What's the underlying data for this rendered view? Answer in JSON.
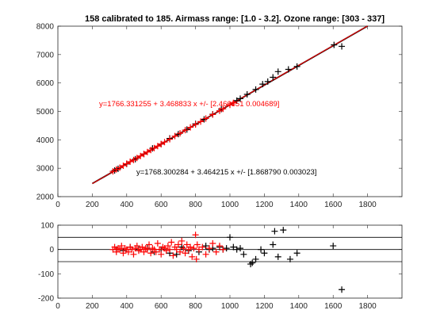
{
  "colors": {
    "black": "#000000",
    "red": "#ff0000",
    "axis": "#262626"
  },
  "chart_data": [
    {
      "type": "scatter",
      "title": "158 calibrated to 185. Airmass range: [1.0 - 3.2]. Ozone range: [303 - 337]",
      "xlabel": "",
      "ylabel": "",
      "xlim": [
        0,
        2000
      ],
      "ylim": [
        2000,
        8000
      ],
      "x_ticks": [
        "0",
        "200",
        "400",
        "600",
        "800",
        "1000",
        "1200",
        "1400",
        "1600",
        "1800"
      ],
      "y_ticks": [
        "2000",
        "3000",
        "4000",
        "5000",
        "6000",
        "7000",
        "8000"
      ],
      "grid": false,
      "annotations": {
        "red_fit": "y=1766.331255 + 3.468833 x +/- [2.466351 0.004689]",
        "black_fit": "y=1768.300284 + 3.464215 x +/- [1.868790 0.003023]"
      },
      "fit_lines": [
        {
          "color": "#000000",
          "intercept": 1768.300284,
          "slope": 3.464215,
          "x": [
            200,
            1800
          ]
        },
        {
          "color": "#ff0000",
          "intercept": 1766.331255,
          "slope": 3.468833,
          "x": [
            200,
            1800
          ]
        }
      ],
      "series": [
        {
          "marker": "+",
          "color": "#000000",
          "points": [
            [
              1605,
              7340
            ],
            [
              1650,
              7290
            ],
            [
              1390,
              6580
            ],
            [
              1340,
              6480
            ],
            [
              1280,
              6400
            ],
            [
              1250,
              6200
            ],
            [
              1220,
              6050
            ],
            [
              1190,
              5960
            ],
            [
              1150,
              5770
            ],
            [
              1100,
              5600
            ],
            [
              1060,
              5450
            ],
            [
              1040,
              5380
            ],
            [
              950,
              5080
            ],
            [
              900,
              4900
            ],
            [
              850,
              4720
            ],
            [
              800,
              4560
            ],
            [
              750,
              4360
            ],
            [
              700,
              4200
            ],
            [
              650,
              4050
            ],
            [
              600,
              3850
            ],
            [
              550,
              3700
            ],
            [
              500,
              3500
            ],
            [
              450,
              3320
            ],
            [
              400,
              3150
            ],
            [
              350,
              2980
            ],
            [
              330,
              2920
            ]
          ]
        },
        {
          "marker": "+",
          "color": "#ff0000",
          "points": [
            [
              320,
              2890
            ],
            [
              340,
              2960
            ],
            [
              360,
              3020
            ],
            [
              380,
              3090
            ],
            [
              400,
              3160
            ],
            [
              420,
              3230
            ],
            [
              440,
              3290
            ],
            [
              460,
              3360
            ],
            [
              480,
              3430
            ],
            [
              500,
              3500
            ],
            [
              520,
              3570
            ],
            [
              540,
              3640
            ],
            [
              560,
              3710
            ],
            [
              580,
              3780
            ],
            [
              600,
              3850
            ],
            [
              620,
              3920
            ],
            [
              650,
              4020
            ],
            [
              680,
              4130
            ],
            [
              710,
              4230
            ],
            [
              740,
              4340
            ],
            [
              770,
              4440
            ],
            [
              800,
              4540
            ],
            [
              830,
              4640
            ],
            [
              860,
              4750
            ],
            [
              900,
              4890
            ],
            [
              940,
              5020
            ],
            [
              960,
              5090
            ],
            [
              1000,
              5230
            ],
            [
              1020,
              5300
            ]
          ]
        }
      ]
    },
    {
      "type": "scatter",
      "title": "",
      "xlabel": "",
      "ylabel": "",
      "xlim": [
        0,
        2000
      ],
      "ylim": [
        -200,
        100
      ],
      "x_ticks": [
        "0",
        "200",
        "400",
        "600",
        "800",
        "1000",
        "1200",
        "1400",
        "1600",
        "1800"
      ],
      "y_ticks": [
        "-200",
        "-100",
        "0",
        "100"
      ],
      "grid": false,
      "reference_lines": [
        50,
        0,
        -50
      ],
      "series": [
        {
          "marker": "+",
          "color": "#000000",
          "points": [
            [
              1600,
              15
            ],
            [
              1650,
              -165
            ],
            [
              1310,
              80
            ],
            [
              1260,
              75
            ],
            [
              1250,
              20
            ],
            [
              1390,
              -15
            ],
            [
              1350,
              -40
            ],
            [
              1280,
              -30
            ],
            [
              1150,
              -40
            ],
            [
              1130,
              -55
            ],
            [
              1120,
              -60
            ],
            [
              1180,
              0
            ],
            [
              1200,
              -15
            ],
            [
              1080,
              -20
            ],
            [
              1060,
              5
            ],
            [
              1040,
              0
            ],
            [
              1020,
              10
            ],
            [
              1000,
              50
            ],
            [
              980,
              5
            ],
            [
              960,
              0
            ],
            [
              940,
              10
            ],
            [
              900,
              5
            ],
            [
              880,
              0
            ],
            [
              860,
              15
            ],
            [
              820,
              -10
            ],
            [
              760,
              -5
            ],
            [
              720,
              10
            ],
            [
              690,
              -20
            ],
            [
              650,
              -15
            ],
            [
              600,
              0
            ],
            [
              560,
              -10
            ],
            [
              520,
              5
            ],
            [
              470,
              0
            ],
            [
              420,
              10
            ],
            [
              380,
              -5
            ],
            [
              340,
              0
            ]
          ]
        },
        {
          "marker": "+",
          "color": "#ff0000",
          "points": [
            [
              320,
              0
            ],
            [
              330,
              10
            ],
            [
              340,
              -10
            ],
            [
              350,
              5
            ],
            [
              360,
              0
            ],
            [
              370,
              15
            ],
            [
              380,
              -15
            ],
            [
              390,
              5
            ],
            [
              400,
              0
            ],
            [
              410,
              -10
            ],
            [
              420,
              10
            ],
            [
              430,
              0
            ],
            [
              440,
              -20
            ],
            [
              450,
              5
            ],
            [
              460,
              15
            ],
            [
              470,
              -5
            ],
            [
              480,
              0
            ],
            [
              490,
              10
            ],
            [
              500,
              -10
            ],
            [
              510,
              5
            ],
            [
              520,
              0
            ],
            [
              530,
              20
            ],
            [
              540,
              -15
            ],
            [
              550,
              5
            ],
            [
              560,
              0
            ],
            [
              570,
              -10
            ],
            [
              580,
              25
            ],
            [
              590,
              0
            ],
            [
              600,
              -20
            ],
            [
              610,
              10
            ],
            [
              620,
              5
            ],
            [
              630,
              -5
            ],
            [
              640,
              15
            ],
            [
              650,
              0
            ],
            [
              660,
              30
            ],
            [
              670,
              -25
            ],
            [
              680,
              10
            ],
            [
              690,
              0
            ],
            [
              700,
              20
            ],
            [
              710,
              -10
            ],
            [
              720,
              35
            ],
            [
              730,
              5
            ],
            [
              740,
              -15
            ],
            [
              750,
              20
            ],
            [
              760,
              0
            ],
            [
              770,
              10
            ],
            [
              780,
              -30
            ],
            [
              790,
              5
            ],
            [
              800,
              60
            ],
            [
              805,
              -40
            ],
            [
              810,
              20
            ],
            [
              820,
              0
            ],
            [
              840,
              10
            ],
            [
              860,
              -20
            ],
            [
              880,
              5
            ],
            [
              900,
              25
            ],
            [
              920,
              -10
            ],
            [
              940,
              15
            ],
            [
              960,
              0
            ]
          ]
        }
      ]
    }
  ]
}
